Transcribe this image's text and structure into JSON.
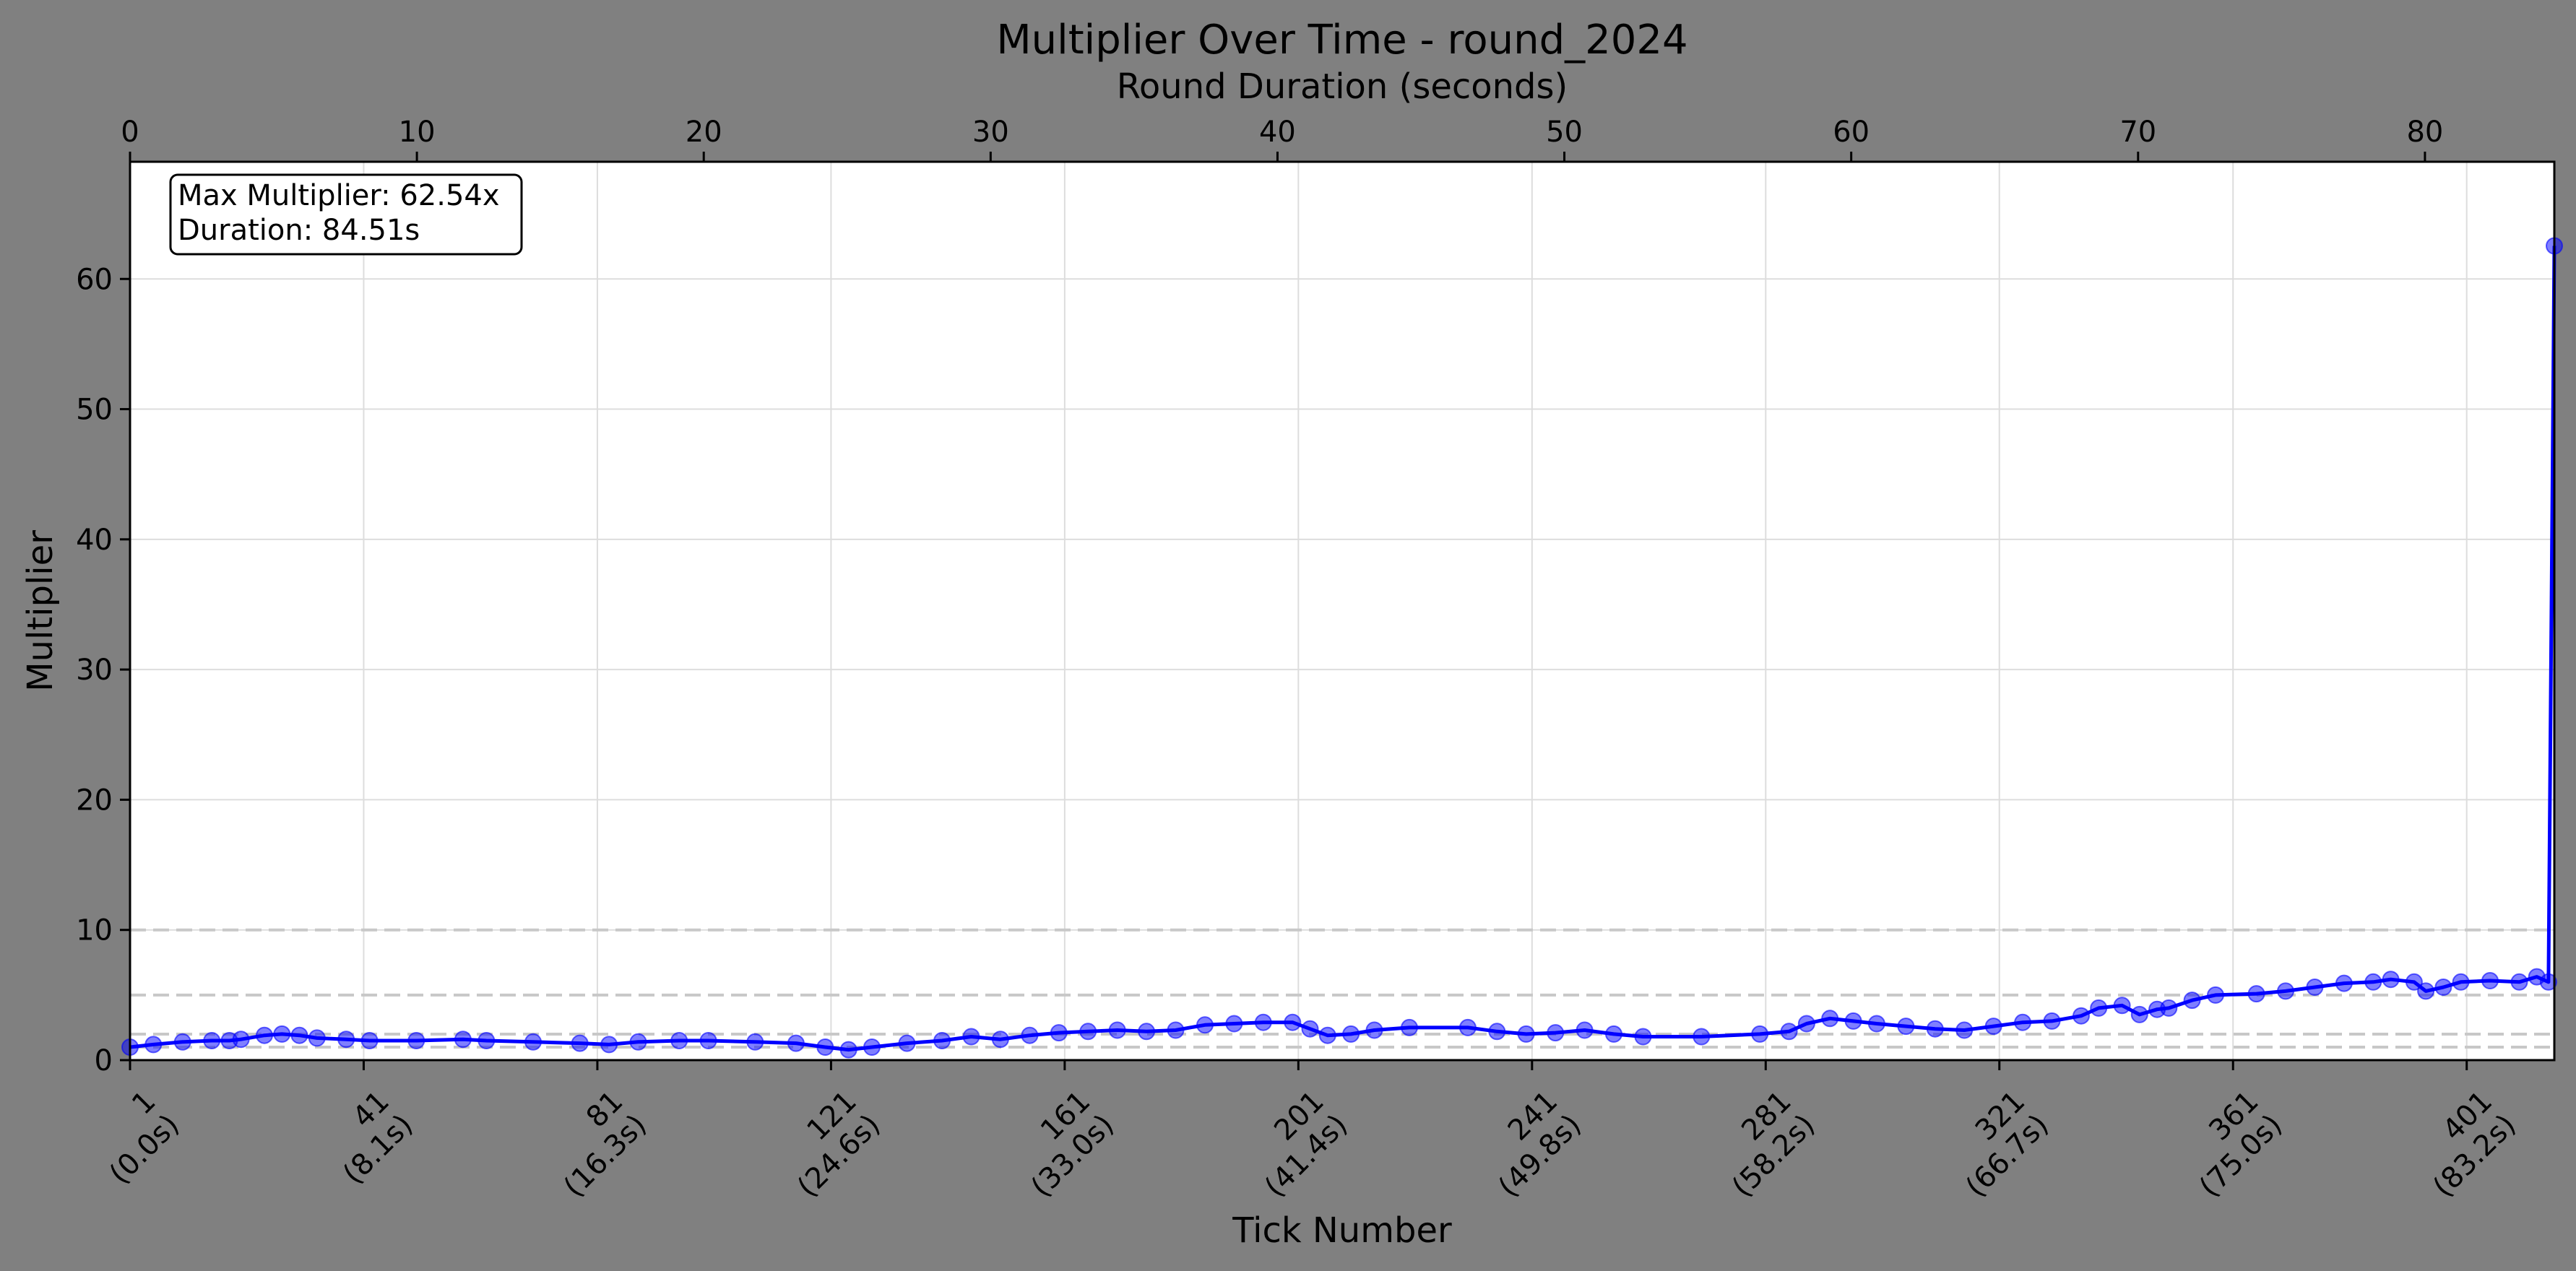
{
  "colors": {
    "figure_background": "#808080",
    "plot_background": "#ffffff",
    "series_line": "#0000ff",
    "grid": "#dddddd",
    "reference_line": "#c8c8c8"
  },
  "chart_data": {
    "type": "line",
    "title": "Multiplier Over Time - round_2024",
    "xlabel": "Tick Number",
    "ylabel": "Multiplier",
    "x2label": "Round Duration (seconds)",
    "xlim": [
      1,
      416
    ],
    "ylim": [
      0,
      69
    ],
    "x2lim": [
      0,
      84.51
    ],
    "grid": true,
    "marker": "circle",
    "x_ticks": [
      {
        "value": 1,
        "label": "1",
        "sublabel": "(0.0s)"
      },
      {
        "value": 41,
        "label": "41",
        "sublabel": "(8.1s)"
      },
      {
        "value": 81,
        "label": "81",
        "sublabel": "(16.3s)"
      },
      {
        "value": 121,
        "label": "121",
        "sublabel": "(24.6s)"
      },
      {
        "value": 161,
        "label": "161",
        "sublabel": "(33.0s)"
      },
      {
        "value": 201,
        "label": "201",
        "sublabel": "(41.4s)"
      },
      {
        "value": 241,
        "label": "241",
        "sublabel": "(49.8s)"
      },
      {
        "value": 281,
        "label": "281",
        "sublabel": "(58.2s)"
      },
      {
        "value": 321,
        "label": "321",
        "sublabel": "(66.7s)"
      },
      {
        "value": 361,
        "label": "361",
        "sublabel": "(75.0s)"
      },
      {
        "value": 401,
        "label": "401",
        "sublabel": "(83.2s)"
      }
    ],
    "y_ticks": [
      0,
      10,
      20,
      30,
      40,
      50,
      60
    ],
    "x2_ticks": [
      0,
      10,
      20,
      30,
      40,
      50,
      60,
      70,
      80
    ],
    "reference_lines": [
      1,
      2,
      5,
      10
    ],
    "annotation": {
      "position": "top-left",
      "lines": [
        "Max Multiplier: 62.54x",
        "Duration: 84.51s"
      ]
    },
    "series": [
      {
        "values_xy": [
          [
            1,
            1.0
          ],
          [
            5,
            1.2
          ],
          [
            10,
            1.4
          ],
          [
            15,
            1.5
          ],
          [
            18,
            1.5
          ],
          [
            20,
            1.6
          ],
          [
            24,
            1.9
          ],
          [
            27,
            2.0
          ],
          [
            30,
            1.9
          ],
          [
            33,
            1.7
          ],
          [
            38,
            1.6
          ],
          [
            42,
            1.5
          ],
          [
            50,
            1.5
          ],
          [
            58,
            1.6
          ],
          [
            62,
            1.5
          ],
          [
            70,
            1.4
          ],
          [
            78,
            1.3
          ],
          [
            83,
            1.2
          ],
          [
            88,
            1.4
          ],
          [
            95,
            1.5
          ],
          [
            100,
            1.5
          ],
          [
            108,
            1.4
          ],
          [
            115,
            1.3
          ],
          [
            120,
            1.0
          ],
          [
            124,
            0.8
          ],
          [
            128,
            1.0
          ],
          [
            134,
            1.3
          ],
          [
            140,
            1.5
          ],
          [
            145,
            1.8
          ],
          [
            150,
            1.6
          ],
          [
            155,
            1.9
          ],
          [
            160,
            2.1
          ],
          [
            165,
            2.2
          ],
          [
            170,
            2.3
          ],
          [
            175,
            2.2
          ],
          [
            180,
            2.3
          ],
          [
            185,
            2.7
          ],
          [
            190,
            2.8
          ],
          [
            195,
            2.9
          ],
          [
            200,
            2.9
          ],
          [
            203,
            2.4
          ],
          [
            206,
            1.9
          ],
          [
            210,
            2.0
          ],
          [
            214,
            2.3
          ],
          [
            220,
            2.5
          ],
          [
            230,
            2.5
          ],
          [
            235,
            2.2
          ],
          [
            240,
            2.0
          ],
          [
            245,
            2.1
          ],
          [
            250,
            2.3
          ],
          [
            255,
            2.0
          ],
          [
            260,
            1.8
          ],
          [
            270,
            1.8
          ],
          [
            280,
            2.0
          ],
          [
            285,
            2.2
          ],
          [
            288,
            2.8
          ],
          [
            292,
            3.2
          ],
          [
            296,
            3.0
          ],
          [
            300,
            2.8
          ],
          [
            305,
            2.6
          ],
          [
            310,
            2.4
          ],
          [
            315,
            2.3
          ],
          [
            320,
            2.6
          ],
          [
            325,
            2.9
          ],
          [
            330,
            3.0
          ],
          [
            335,
            3.4
          ],
          [
            338,
            4.0
          ],
          [
            342,
            4.2
          ],
          [
            345,
            3.5
          ],
          [
            348,
            3.9
          ],
          [
            350,
            4.0
          ],
          [
            354,
            4.6
          ],
          [
            358,
            5.0
          ],
          [
            365,
            5.1
          ],
          [
            370,
            5.3
          ],
          [
            375,
            5.6
          ],
          [
            380,
            5.9
          ],
          [
            385,
            6.0
          ],
          [
            388,
            6.2
          ],
          [
            392,
            6.0
          ],
          [
            394,
            5.3
          ],
          [
            397,
            5.6
          ],
          [
            400,
            6.0
          ],
          [
            405,
            6.1
          ],
          [
            410,
            6.0
          ],
          [
            413,
            6.4
          ],
          [
            415,
            6.0
          ],
          [
            416,
            62.54
          ]
        ]
      }
    ]
  }
}
